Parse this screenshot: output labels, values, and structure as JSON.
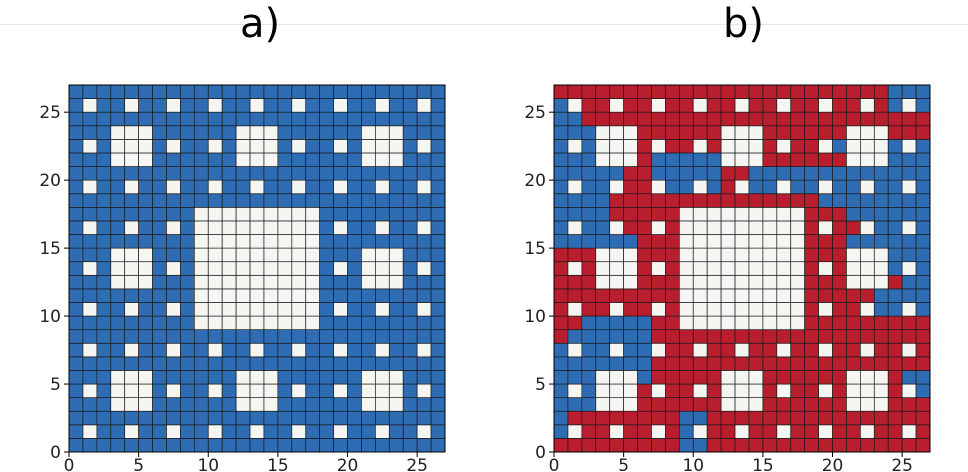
{
  "panel_titles": [
    "a)",
    "b)"
  ],
  "chart_data": [
    {
      "type": "heatmap",
      "title": "a)",
      "xlabel": "",
      "ylabel": "",
      "xlim": [
        0,
        27
      ],
      "ylim": [
        0,
        27
      ],
      "xticks": [
        0,
        5,
        10,
        15,
        20,
        25
      ],
      "yticks": [
        0,
        5,
        10,
        15,
        20,
        25
      ],
      "grid": true,
      "cell_rule": "Sierpinski carpet, level 3: cell (x,y) is empty (white) when for some k in {1,3,9}, floor(x/k) mod 3 = 1 and floor(y/k) mod 3 = 1; every other cell is filled",
      "colors": {
        "filled": "#2e6db4",
        "empty": "#f5f5f2",
        "gridline": "#1a1a1a"
      }
    },
    {
      "type": "heatmap",
      "title": "b)",
      "xlabel": "",
      "ylabel": "",
      "xlim": [
        0,
        27
      ],
      "ylim": [
        0,
        27
      ],
      "xticks": [
        0,
        5,
        10,
        15,
        20,
        25
      ],
      "yticks": [
        0,
        5,
        10,
        15,
        20,
        25
      ],
      "grid": true,
      "cell_rule": "same Sierpinski carpet as a); filled cells are split into two clusters, red (R) and blue (B)",
      "colors": {
        "R": "#b81e2e",
        "B": "#2e6db4",
        "empty": "#f5f5f2",
        "gridline": "#1a1a1a"
      },
      "cluster_rows_top_to_bottom": [
        "RRRRRRRRRRRRRRRRRRRRRRRRBBB",
        "BRRRRRRRRRRRRRRRRRRRRRRRBBB",
        "BBRRRRRRRRRRRRRRRRRRRRRRRRR",
        "BBBRRRRRRRRRRRRRRRRRRRRRRRR",
        "BBBRRRRRRRRRRRRRRRRBBBBBBBB",
        "BBBRRRRBBBBBRRRRRRRRRBBBBBB",
        "BBBBBRRBBBBBRRBBBBBBBBBBBBB",
        "BBBBBRRRBBBBRRBBBBBBBBBBBBB",
        "BBBBRRRRRRRRRRRRRRRBBBBBBBB",
        "BBBBRRRRRRRRRRRRRRRRRBBBBBB",
        "BBBBRRRRRRRRRRRRRRRRRRBBBBB",
        "BBBBBBRRRRRRRRRRRRRRRBBBBBB",
        "RRRRRRRRRRRRRRRRRRRRRBBBBBB",
        "RRRRRRRRRRRRRRRRRRRRRRBBBBB",
        "RRRRRRRRRRRRRRRRRRRRRRRRRBB",
        "RRRRRRRRRRRRRRRRRRRRRRRBBBB",
        "RRRRRRRRRRRRRRRRRRRRRRBBBBB",
        "RRBBBBBRRRRRRRRRRRRRRRRRRRR",
        "RBBBBBBRRRRRRRRRRRRRRRRRRRR",
        "BBBBBBBBRRRRRRRRRRRRRRRRRRR",
        "BBBBBBBRRRRRRRRRRRRRRRRRRRR",
        "BBBBBBBRRRRRRRRRRRRRRRRRRBB",
        "BBBBBBRRRRRRRRRRRRRRRRRRRBB",
        "BBBBBBRRRRRRRRRRRRRRRRRRRRR",
        "BRRRRRRRRBBRRRRRRRRRRRRRRRR",
        "BRRRRRRRRBBRRRRRRRRRRRRRRRR",
        "RRRRRRRRRBBRRRRRRRRRRRRRRRR"
      ]
    }
  ]
}
